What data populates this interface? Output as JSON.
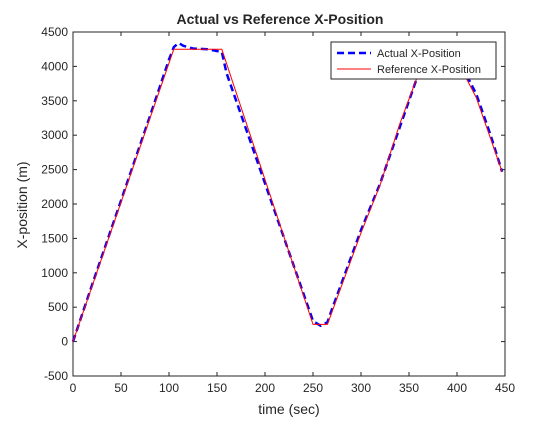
{
  "chart_data": {
    "type": "line",
    "title": "Actual vs Reference X-Position",
    "xlabel": "time (sec)",
    "ylabel": "X-position (m)",
    "xlim": [
      0,
      450
    ],
    "ylim": [
      -500,
      4500
    ],
    "xticks": [
      0,
      50,
      100,
      150,
      200,
      250,
      300,
      350,
      400,
      450
    ],
    "yticks": [
      -500,
      0,
      500,
      1000,
      1500,
      2000,
      2500,
      3000,
      3500,
      4000,
      4500
    ],
    "grid": false,
    "legend_position": "top-right",
    "series": [
      {
        "name": "Actual X-Position",
        "color": "#0000ff",
        "style": "dashed",
        "x": [
          0,
          20,
          50,
          80,
          100,
          105,
          110,
          115,
          125,
          140,
          155,
          160,
          180,
          200,
          230,
          250,
          258,
          265,
          270,
          285,
          300,
          320,
          340,
          355,
          360,
          370,
          390,
          405,
          410,
          420,
          435,
          447
        ],
        "y": [
          0,
          830,
          2050,
          3270,
          4100,
          4280,
          4340,
          4300,
          4260,
          4250,
          4210,
          3900,
          3100,
          2300,
          1100,
          300,
          230,
          280,
          480,
          1050,
          1620,
          2300,
          3100,
          3700,
          3900,
          4180,
          4220,
          4030,
          3870,
          3600,
          3000,
          2470
        ]
      },
      {
        "name": "Reference X-Position",
        "color": "#ff0000",
        "style": "solid",
        "x": [
          0,
          105,
          155,
          250,
          265,
          300,
          320,
          340,
          360,
          370,
          390,
          405,
          420,
          447
        ],
        "y": [
          0,
          4250,
          4250,
          250,
          250,
          1580,
          2280,
          3150,
          3900,
          4200,
          4200,
          3950,
          3550,
          2470
        ]
      }
    ]
  }
}
